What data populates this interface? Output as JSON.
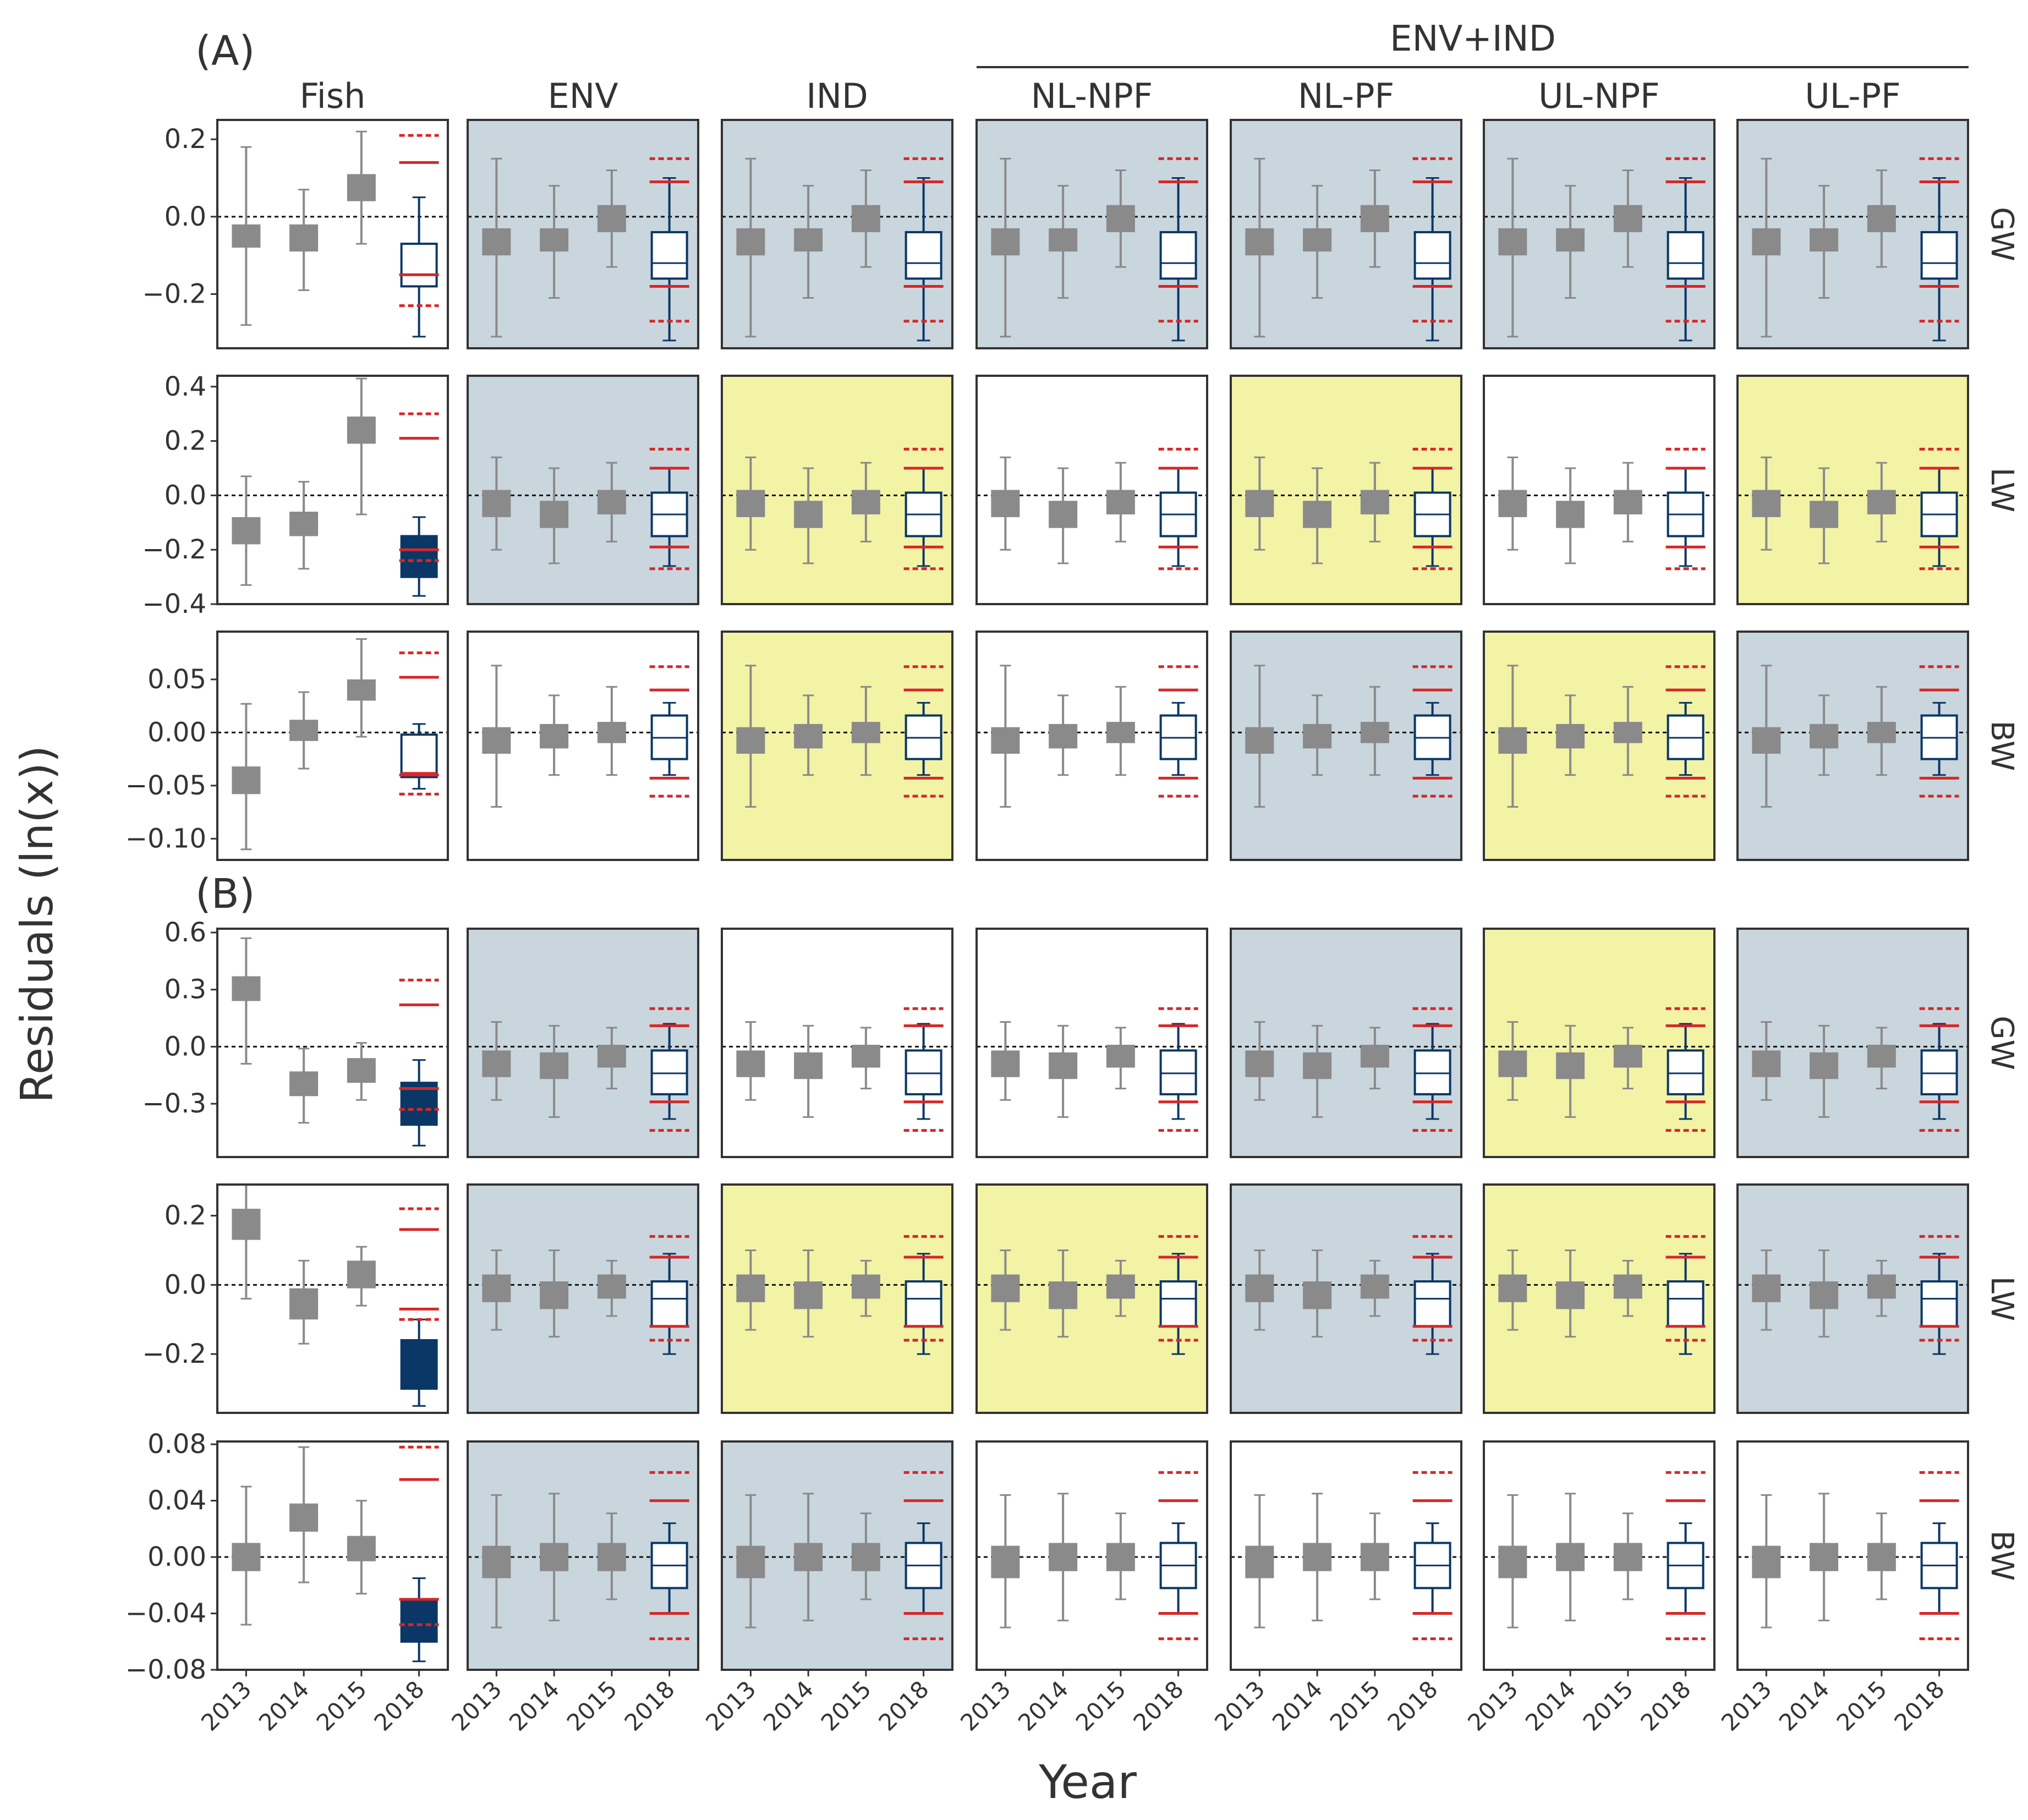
{
  "chart_data": {
    "type": "boxplot-grid",
    "xlabel": "Year",
    "ylabel": "Residuals (ln(x))",
    "group_header": "ENV+IND",
    "columns": [
      "Fish",
      "ENV",
      "IND",
      "NL-NPF",
      "NL-PF",
      "UL-NPF",
      "UL-PF"
    ],
    "years": [
      "2013",
      "2014",
      "2015",
      "2018"
    ],
    "row_labels": [
      "GW",
      "LW",
      "BW",
      "GW",
      "LW",
      "BW"
    ],
    "colors": {
      "shade_blue": "#c9d6de",
      "shade_yellow": "#f3f3a6",
      "box_gray": "#8a8a8a",
      "box_navy": "#0b3766",
      "ref_red": "#d62728",
      "frame": "#333333"
    },
    "sections": [
      {
        "label": "(A)",
        "rows": [
          {
            "name": "GW",
            "ylim": [
              -0.34,
              0.25
            ],
            "ticks": [
              -0.2,
              0.0,
              0.2
            ],
            "tick_labels": [
              "−0.2",
              "0.0",
              "0.2"
            ],
            "fish": {
              "boxes": [
                {
                  "med": -0.05,
                  "q1": -0.08,
                  "q3": -0.02,
                  "lo": -0.28,
                  "hi": 0.18
                },
                {
                  "med": -0.05,
                  "q1": -0.09,
                  "q3": -0.02,
                  "lo": -0.19,
                  "hi": 0.07
                },
                {
                  "med": 0.08,
                  "q1": 0.04,
                  "q3": 0.11,
                  "lo": -0.07,
                  "hi": 0.22
                },
                {
                  "med": -0.15,
                  "q1": -0.18,
                  "q3": -0.07,
                  "lo": -0.31,
                  "hi": 0.05
                }
              ],
              "box2018_filled": false,
              "ref": {
                "solid": [
                  0.14,
                  -0.15
                ],
                "dashed": [
                  0.21,
                  -0.23
                ]
              }
            },
            "model": {
              "boxes": [
                {
                  "med": -0.06,
                  "q1": -0.1,
                  "q3": -0.03,
                  "lo": -0.31,
                  "hi": 0.15
                },
                {
                  "med": -0.06,
                  "q1": -0.09,
                  "q3": -0.03,
                  "lo": -0.21,
                  "hi": 0.08
                },
                {
                  "med": 0.0,
                  "q1": -0.04,
                  "q3": 0.03,
                  "lo": -0.13,
                  "hi": 0.12
                },
                {
                  "med": -0.12,
                  "q1": -0.16,
                  "q3": -0.04,
                  "lo": -0.32,
                  "hi": 0.1
                }
              ],
              "ref": {
                "solid": [
                  0.09,
                  -0.18
                ],
                "dashed": [
                  0.15,
                  -0.27
                ]
              }
            },
            "shading": [
              "blue",
              "blue",
              "blue",
              "blue",
              "blue",
              "blue"
            ]
          },
          {
            "name": "LW",
            "ylim": [
              -0.4,
              0.44
            ],
            "ticks": [
              -0.4,
              -0.2,
              0.0,
              0.2,
              0.4
            ],
            "tick_labels": [
              "−0.4",
              "−0.2",
              "0.0",
              "0.2",
              "0.4"
            ],
            "fish": {
              "boxes": [
                {
                  "med": -0.13,
                  "q1": -0.18,
                  "q3": -0.08,
                  "lo": -0.33,
                  "hi": 0.07
                },
                {
                  "med": -0.11,
                  "q1": -0.15,
                  "q3": -0.06,
                  "lo": -0.27,
                  "hi": 0.05
                },
                {
                  "med": 0.24,
                  "q1": 0.19,
                  "q3": 0.29,
                  "lo": -0.07,
                  "hi": 0.43
                },
                {
                  "med": -0.22,
                  "q1": -0.3,
                  "q3": -0.15,
                  "lo": -0.37,
                  "hi": -0.08
                }
              ],
              "box2018_filled": true,
              "ref": {
                "solid": [
                  0.21,
                  -0.2
                ],
                "dashed": [
                  0.3,
                  -0.24
                ]
              }
            },
            "model": {
              "boxes": [
                {
                  "med": -0.03,
                  "q1": -0.08,
                  "q3": 0.02,
                  "lo": -0.2,
                  "hi": 0.14
                },
                {
                  "med": -0.07,
                  "q1": -0.12,
                  "q3": -0.02,
                  "lo": -0.25,
                  "hi": 0.1
                },
                {
                  "med": -0.03,
                  "q1": -0.07,
                  "q3": 0.02,
                  "lo": -0.17,
                  "hi": 0.12
                },
                {
                  "med": -0.07,
                  "q1": -0.15,
                  "q3": 0.01,
                  "lo": -0.26,
                  "hi": 0.1
                }
              ],
              "ref": {
                "solid": [
                  0.1,
                  -0.19
                ],
                "dashed": [
                  0.17,
                  -0.27
                ]
              }
            },
            "shading": [
              "blue",
              "yellow",
              "none",
              "yellow",
              "none",
              "yellow"
            ]
          },
          {
            "name": "BW",
            "ylim": [
              -0.12,
              0.095
            ],
            "ticks": [
              -0.1,
              -0.05,
              0.0,
              0.05
            ],
            "tick_labels": [
              "−0.10",
              "−0.05",
              "0.00",
              "0.05"
            ],
            "fish": {
              "boxes": [
                {
                  "med": -0.045,
                  "q1": -0.058,
                  "q3": -0.032,
                  "lo": -0.11,
                  "hi": 0.027
                },
                {
                  "med": 0.002,
                  "q1": -0.008,
                  "q3": 0.012,
                  "lo": -0.034,
                  "hi": 0.038
                },
                {
                  "med": 0.04,
                  "q1": 0.03,
                  "q3": 0.05,
                  "lo": -0.004,
                  "hi": 0.088
                },
                {
                  "med": -0.038,
                  "q1": -0.042,
                  "q3": -0.002,
                  "lo": -0.053,
                  "hi": 0.008
                }
              ],
              "box2018_filled": false,
              "ref": {
                "solid": [
                  0.052,
                  -0.04
                ],
                "dashed": [
                  0.075,
                  -0.058
                ]
              }
            },
            "model": {
              "boxes": [
                {
                  "med": -0.008,
                  "q1": -0.02,
                  "q3": 0.005,
                  "lo": -0.07,
                  "hi": 0.063
                },
                {
                  "med": -0.004,
                  "q1": -0.015,
                  "q3": 0.008,
                  "lo": -0.04,
                  "hi": 0.035
                },
                {
                  "med": 0.0,
                  "q1": -0.01,
                  "q3": 0.01,
                  "lo": -0.04,
                  "hi": 0.043
                },
                {
                  "med": -0.005,
                  "q1": -0.025,
                  "q3": 0.016,
                  "lo": -0.04,
                  "hi": 0.028
                }
              ],
              "ref": {
                "solid": [
                  0.04,
                  -0.043
                ],
                "dashed": [
                  0.062,
                  -0.06
                ]
              }
            },
            "shading": [
              "none",
              "yellow",
              "none",
              "blue",
              "yellow",
              "blue"
            ]
          }
        ]
      },
      {
        "label": "(B)",
        "rows": [
          {
            "name": "GW",
            "ylim": [
              -0.58,
              0.62
            ],
            "ticks": [
              -0.3,
              0.0,
              0.3,
              0.6
            ],
            "tick_labels": [
              "−0.3",
              "0.0",
              "0.3",
              "0.6"
            ],
            "fish": {
              "boxes": [
                {
                  "med": 0.3,
                  "q1": 0.24,
                  "q3": 0.37,
                  "lo": -0.09,
                  "hi": 0.57
                },
                {
                  "med": -0.2,
                  "q1": -0.26,
                  "q3": -0.13,
                  "lo": -0.4,
                  "hi": -0.01
                },
                {
                  "med": -0.13,
                  "q1": -0.19,
                  "q3": -0.06,
                  "lo": -0.28,
                  "hi": 0.02
                },
                {
                  "med": -0.3,
                  "q1": -0.41,
                  "q3": -0.19,
                  "lo": -0.52,
                  "hi": -0.07
                }
              ],
              "box2018_filled": true,
              "ref": {
                "solid": [
                  0.22,
                  -0.22
                ],
                "dashed": [
                  0.35,
                  -0.33
                ]
              }
            },
            "model": {
              "boxes": [
                {
                  "med": -0.09,
                  "q1": -0.16,
                  "q3": -0.02,
                  "lo": -0.28,
                  "hi": 0.13
                },
                {
                  "med": -0.11,
                  "q1": -0.17,
                  "q3": -0.03,
                  "lo": -0.37,
                  "hi": 0.11
                },
                {
                  "med": -0.05,
                  "q1": -0.11,
                  "q3": 0.01,
                  "lo": -0.22,
                  "hi": 0.1
                },
                {
                  "med": -0.14,
                  "q1": -0.25,
                  "q3": -0.02,
                  "lo": -0.38,
                  "hi": 0.12
                }
              ],
              "ref": {
                "solid": [
                  0.11,
                  -0.29
                ],
                "dashed": [
                  0.2,
                  -0.44
                ]
              }
            },
            "shading": [
              "blue",
              "none",
              "none",
              "blue",
              "yellow",
              "blue"
            ]
          },
          {
            "name": "LW",
            "ylim": [
              -0.37,
              0.29
            ],
            "ticks": [
              -0.2,
              0.0,
              0.2
            ],
            "tick_labels": [
              "−0.2",
              "0.0",
              "0.2"
            ],
            "fish": {
              "boxes": [
                {
                  "med": 0.17,
                  "q1": 0.13,
                  "q3": 0.22,
                  "lo": -0.04,
                  "hi": 0.29
                },
                {
                  "med": -0.05,
                  "q1": -0.1,
                  "q3": -0.01,
                  "lo": -0.17,
                  "hi": 0.07
                },
                {
                  "med": 0.03,
                  "q1": -0.01,
                  "q3": 0.07,
                  "lo": -0.06,
                  "hi": 0.11
                },
                {
                  "med": -0.24,
                  "q1": -0.3,
                  "q3": -0.16,
                  "lo": -0.35,
                  "hi": -0.1
                }
              ],
              "box2018_filled": true,
              "ref": {
                "solid": [
                  0.16,
                  -0.07
                ],
                "dashed": [
                  0.22,
                  -0.1
                ]
              }
            },
            "model": {
              "boxes": [
                {
                  "med": -0.01,
                  "q1": -0.05,
                  "q3": 0.03,
                  "lo": -0.13,
                  "hi": 0.1
                },
                {
                  "med": -0.03,
                  "q1": -0.07,
                  "q3": 0.01,
                  "lo": -0.15,
                  "hi": 0.1
                },
                {
                  "med": -0.01,
                  "q1": -0.04,
                  "q3": 0.03,
                  "lo": -0.09,
                  "hi": 0.07
                },
                {
                  "med": -0.04,
                  "q1": -0.12,
                  "q3": 0.01,
                  "lo": -0.2,
                  "hi": 0.09
                }
              ],
              "ref": {
                "solid": [
                  0.08,
                  -0.12
                ],
                "dashed": [
                  0.14,
                  -0.16
                ]
              }
            },
            "shading": [
              "blue",
              "yellow",
              "yellow",
              "blue",
              "yellow",
              "blue"
            ]
          },
          {
            "name": "BW",
            "ylim": [
              -0.08,
              0.082
            ],
            "ticks": [
              -0.08,
              -0.04,
              0.0,
              0.04,
              0.08
            ],
            "tick_labels": [
              "−0.08",
              "−0.04",
              "0.00",
              "0.04",
              "0.08"
            ],
            "fish": {
              "boxes": [
                {
                  "med": 0.0,
                  "q1": -0.01,
                  "q3": 0.01,
                  "lo": -0.048,
                  "hi": 0.05
                },
                {
                  "med": 0.028,
                  "q1": 0.018,
                  "q3": 0.038,
                  "lo": -0.018,
                  "hi": 0.078
                },
                {
                  "med": 0.006,
                  "q1": -0.003,
                  "q3": 0.015,
                  "lo": -0.026,
                  "hi": 0.04
                },
                {
                  "med": -0.045,
                  "q1": -0.06,
                  "q3": -0.03,
                  "lo": -0.074,
                  "hi": -0.015
                }
              ],
              "box2018_filled": true,
              "ref": {
                "solid": [
                  0.055,
                  -0.03
                ],
                "dashed": [
                  0.078,
                  -0.048
                ]
              }
            },
            "model": {
              "boxes": [
                {
                  "med": -0.003,
                  "q1": -0.015,
                  "q3": 0.008,
                  "lo": -0.05,
                  "hi": 0.044
                },
                {
                  "med": 0.0,
                  "q1": -0.01,
                  "q3": 0.01,
                  "lo": -0.045,
                  "hi": 0.045
                },
                {
                  "med": 0.0,
                  "q1": -0.01,
                  "q3": 0.01,
                  "lo": -0.03,
                  "hi": 0.031
                },
                {
                  "med": -0.006,
                  "q1": -0.022,
                  "q3": 0.01,
                  "lo": -0.04,
                  "hi": 0.024
                }
              ],
              "ref": {
                "solid": [
                  0.04,
                  -0.04
                ],
                "dashed": [
                  0.06,
                  -0.058
                ]
              }
            },
            "shading": [
              "blue",
              "blue",
              "none",
              "none",
              "none",
              "none"
            ]
          }
        ]
      }
    ]
  }
}
